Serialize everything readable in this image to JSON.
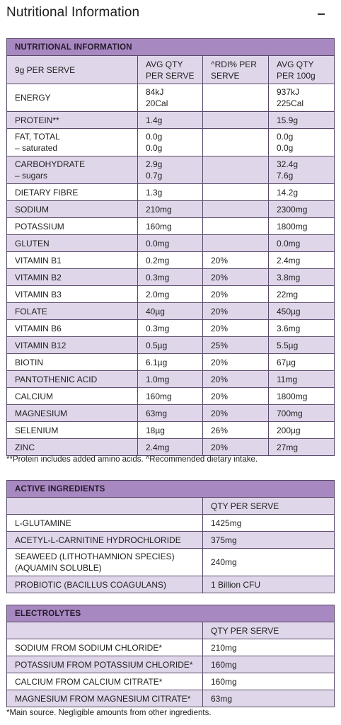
{
  "page_title": "Nutritional Information",
  "nutrition": {
    "section_title": "NUTRITIONAL INFORMATION",
    "columns": [
      "9g PER SERVE",
      "AVG QTY\nPER SERVE",
      "^RDI% PER\nSERVE",
      "AVG QTY\nPER 100g"
    ],
    "rows": [
      {
        "name": "ENERGY",
        "serve": "84kJ\n20Cal",
        "rdi": "",
        "per100": "937kJ\n225Cal"
      },
      {
        "name": "PROTEIN**",
        "serve": "1.4g",
        "rdi": "",
        "per100": "15.9g"
      },
      {
        "name": "FAT, TOTAL\n– saturated",
        "serve": "0.0g\n0.0g",
        "rdi": "",
        "per100": "0.0g\n0.0g"
      },
      {
        "name": "CARBOHYDRATE\n– sugars",
        "serve": "2.9g\n0.7g",
        "rdi": "",
        "per100": "32.4g\n7.6g"
      },
      {
        "name": "DIETARY FIBRE",
        "serve": "1.3g",
        "rdi": "",
        "per100": "14.2g"
      },
      {
        "name": "SODIUM",
        "serve": "210mg",
        "rdi": "",
        "per100": "2300mg"
      },
      {
        "name": "POTASSIUM",
        "serve": "160mg",
        "rdi": "",
        "per100": "1800mg"
      },
      {
        "name": "GLUTEN",
        "serve": "0.0mg",
        "rdi": "",
        "per100": "0.0mg"
      },
      {
        "name": "VITAMIN B1",
        "serve": "0.2mg",
        "rdi": "20%",
        "per100": "2.4mg"
      },
      {
        "name": "VITAMIN B2",
        "serve": "0.3mg",
        "rdi": "20%",
        "per100": "3.8mg"
      },
      {
        "name": "VITAMIN B3",
        "serve": "2.0mg",
        "rdi": "20%",
        "per100": "22mg"
      },
      {
        "name": "FOLATE",
        "serve": "40µg",
        "rdi": "20%",
        "per100": "450µg"
      },
      {
        "name": "VITAMIN B6",
        "serve": "0.3mg",
        "rdi": "20%",
        "per100": "3.6mg"
      },
      {
        "name": "VITAMIN B12",
        "serve": "0.5µg",
        "rdi": "25%",
        "per100": "5.5µg"
      },
      {
        "name": "BIOTIN",
        "serve": "6.1µg",
        "rdi": "20%",
        "per100": "67µg"
      },
      {
        "name": "PANTOTHENIC ACID",
        "serve": "1.0mg",
        "rdi": "20%",
        "per100": "11mg"
      },
      {
        "name": "CALCIUM",
        "serve": "160mg",
        "rdi": "20%",
        "per100": "1800mg"
      },
      {
        "name": "MAGNESIUM",
        "serve": "63mg",
        "rdi": "20%",
        "per100": "700mg"
      },
      {
        "name": "SELENIUM",
        "serve": "18µg",
        "rdi": "26%",
        "per100": "200µg"
      },
      {
        "name": "ZINC",
        "serve": "2.4mg",
        "rdi": "20%",
        "per100": "27mg"
      }
    ],
    "footnote": "**Protein includes added amino acids. ^Recommended dietary intake."
  },
  "active": {
    "section_title": "ACTIVE INGREDIENTS",
    "qty_header": "QTY PER SERVE",
    "rows": [
      {
        "name": "L-GLUTAMINE",
        "qty": "1425mg"
      },
      {
        "name": "ACETYL-L-CARNITINE HYDROCHLORIDE",
        "qty": "375mg"
      },
      {
        "name": "SEAWEED (LITHOTHAMNION SPECIES)\n(AQUAMIN SOLUBLE)",
        "qty": "240mg"
      },
      {
        "name": "PROBIOTIC (BACILLUS COAGULANS)",
        "qty": "1 Billion CFU"
      }
    ]
  },
  "electrolytes": {
    "section_title": "ELECTROLYTES",
    "qty_header": "QTY PER SERVE",
    "rows": [
      {
        "name": "SODIUM FROM SODIUM CHLORIDE*",
        "qty": "210mg"
      },
      {
        "name": "POTASSIUM FROM POTASSIUM CHLORIDE*",
        "qty": "160mg"
      },
      {
        "name": "CALCIUM FROM CALCIUM CITRATE*",
        "qty": "160mg"
      },
      {
        "name": "MAGNESIUM FROM MAGNESIUM CITRATE*",
        "qty": "63mg"
      }
    ],
    "footnote": "*Main source. Negligible amounts from other ingredients."
  },
  "colors": {
    "header_purple": "#a888c0",
    "row_lavender": "#e0d6ea",
    "border": "#5a4a6a"
  }
}
